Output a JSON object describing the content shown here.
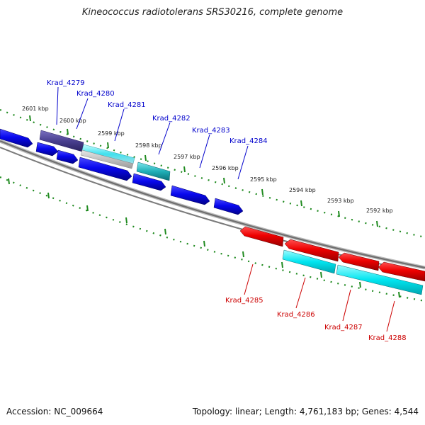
{
  "title": "Kineococcus radiotolerans SRS30216, complete genome",
  "footer": {
    "accession": "Accession: NC_009664",
    "summary": "Topology: linear; Length: 4,761,183 bp; Genes: 4,544"
  },
  "kbp_ticks": [
    "2601 kbp",
    "2600 kbp",
    "2599 kbp",
    "2598 kbp",
    "2597 kbp",
    "2596 kbp",
    "2595 kbp",
    "2594 kbp",
    "2593 kbp",
    "2592 kbp"
  ],
  "genes_top": [
    {
      "label": "Krad_4279",
      "color": "#0000cc"
    },
    {
      "label": "Krad_4280",
      "color": "#0000cc"
    },
    {
      "label": "Krad_4281",
      "color": "#0000cc"
    },
    {
      "label": "Krad_4282",
      "color": "#0000cc"
    },
    {
      "label": "Krad_4283",
      "color": "#0000cc"
    },
    {
      "label": "Krad_4284",
      "color": "#0000cc"
    }
  ],
  "genes_bottom": [
    {
      "label": "Krad_4285",
      "color": "#cc0000"
    },
    {
      "label": "Krad_4286",
      "color": "#cc0000"
    },
    {
      "label": "Krad_4287",
      "color": "#cc0000"
    },
    {
      "label": "Krad_4288",
      "color": "#cc0000"
    }
  ],
  "colors": {
    "forward_cds": "#0a0aee",
    "forward_dark": "#4a4090",
    "reverse_cds": "#ee0000",
    "cyan_feature": "#00e5f0",
    "teal_feature": "#20b0b8",
    "tick_green": "#1f8a1f",
    "backbone": "#777777"
  }
}
